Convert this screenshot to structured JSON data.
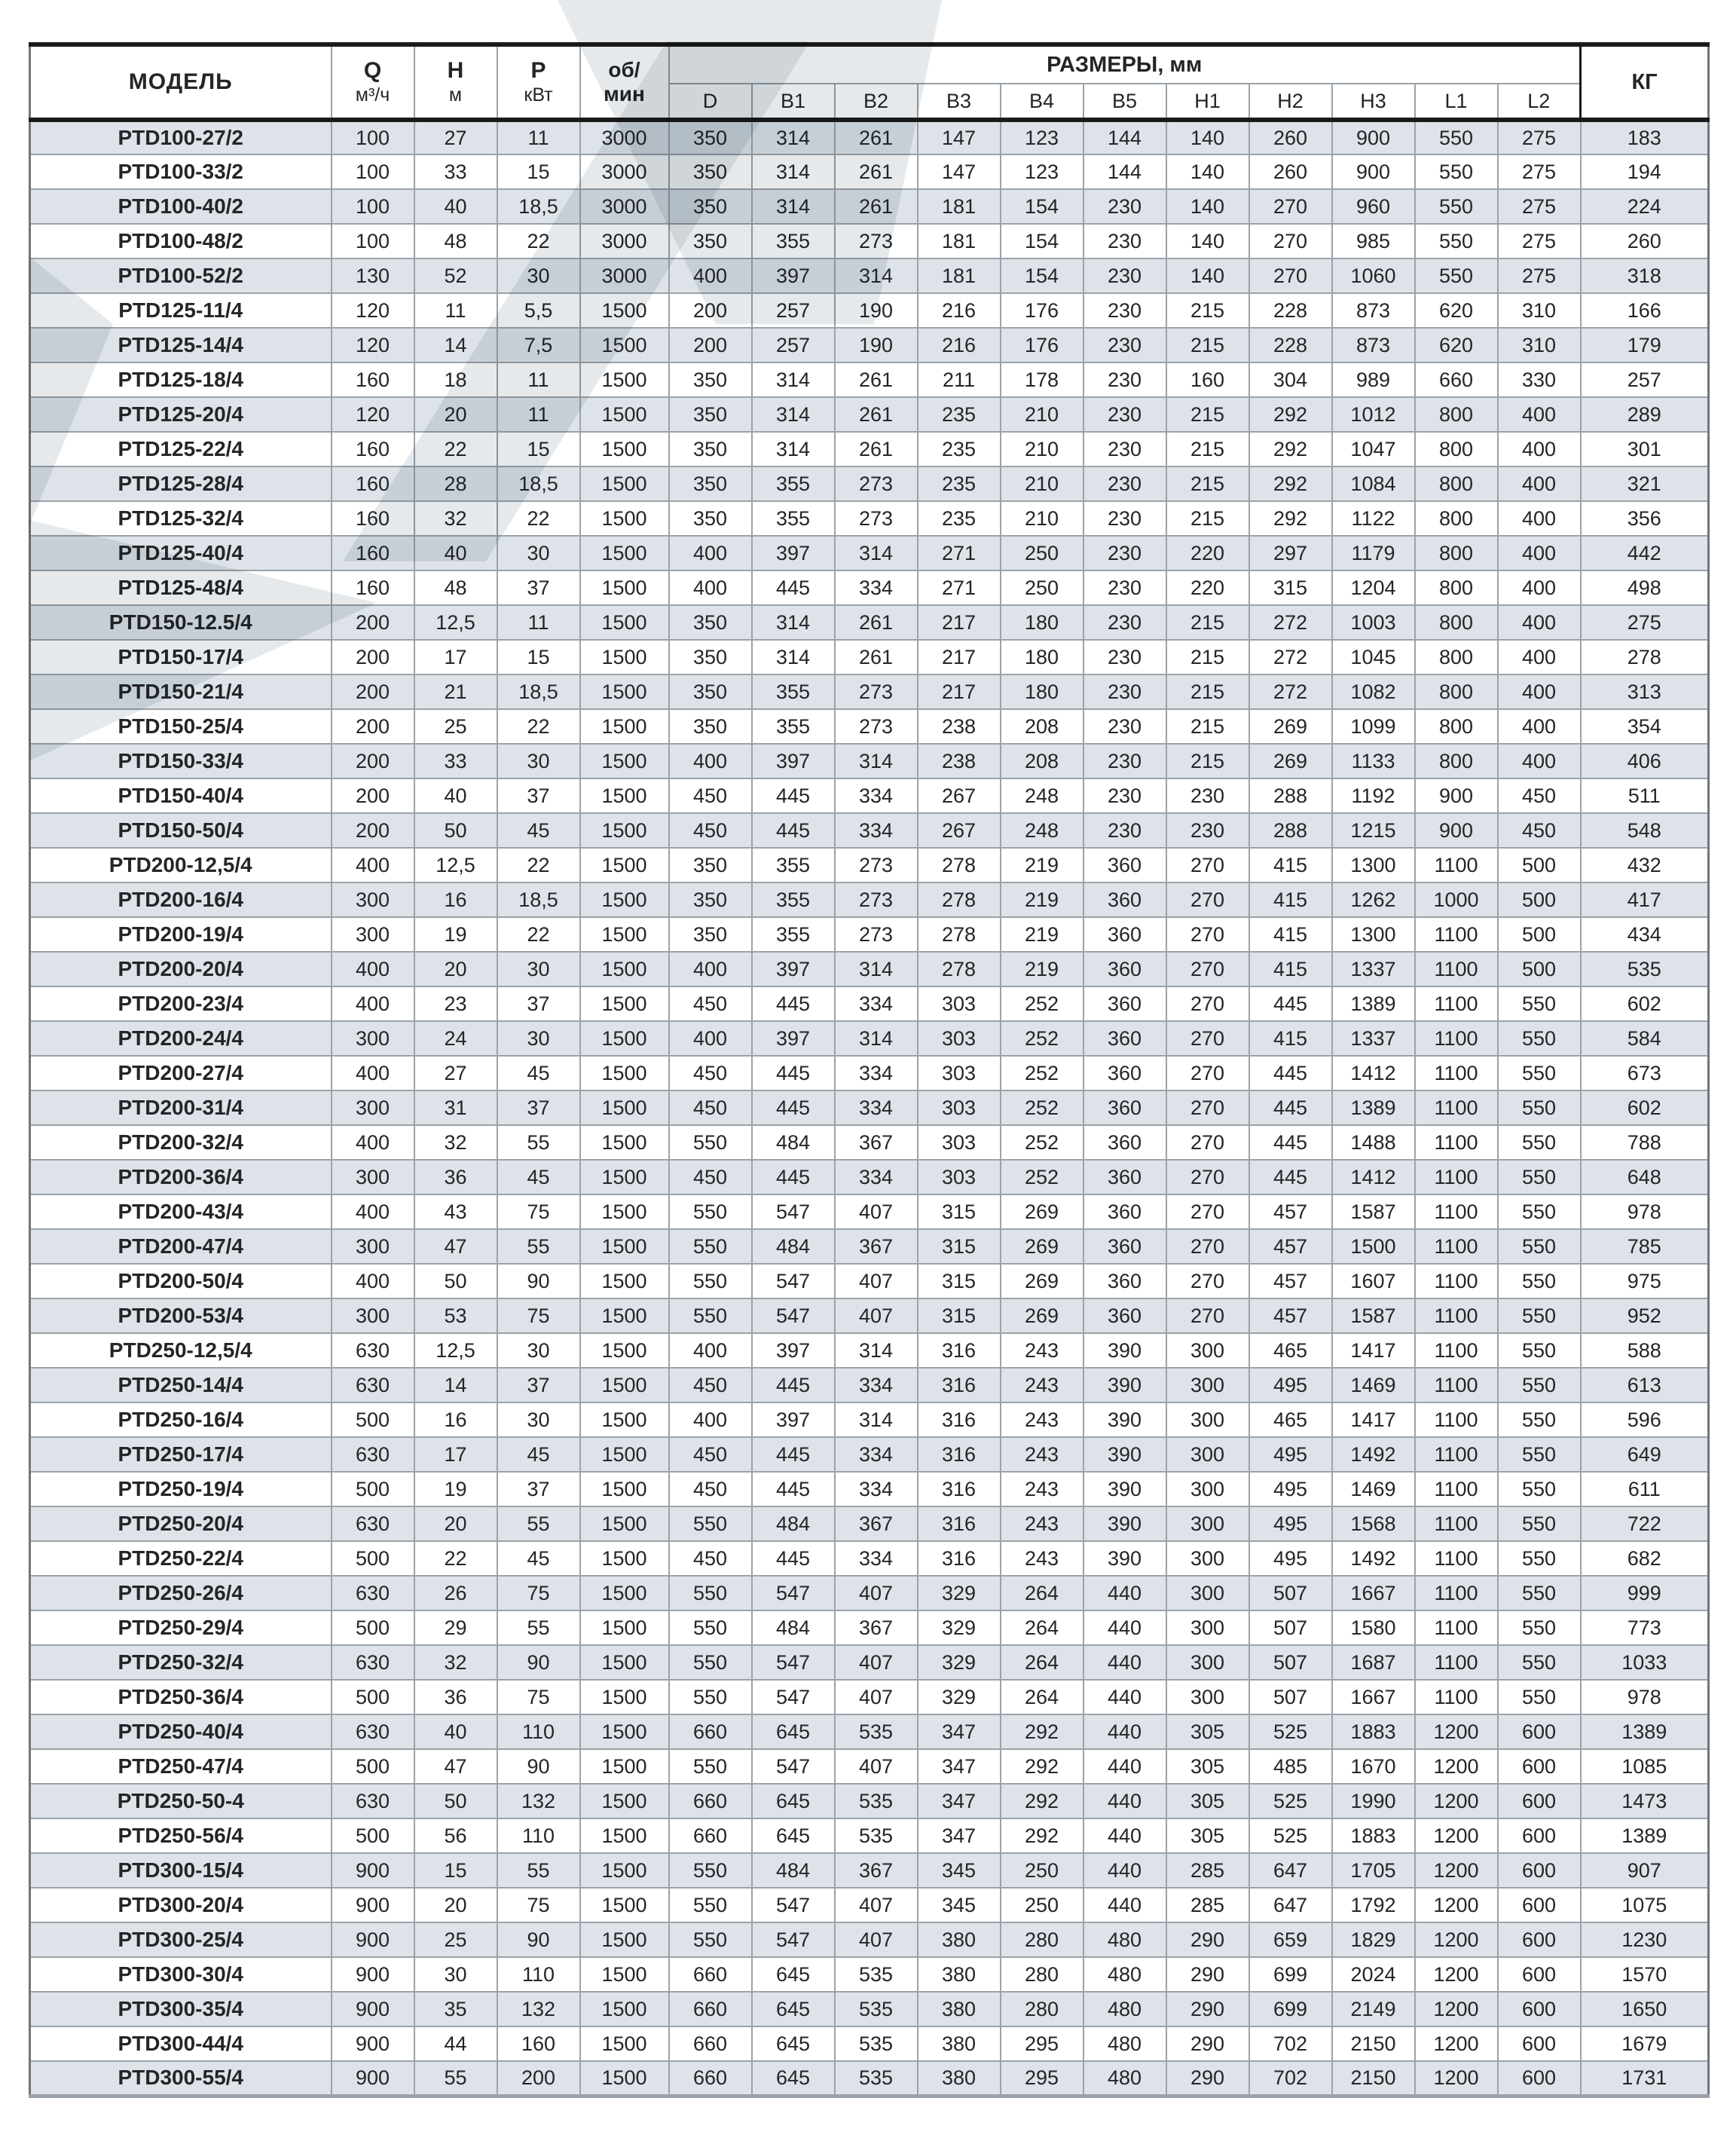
{
  "table": {
    "headers": {
      "model": "МОДЕЛЬ",
      "q": {
        "label": "Q",
        "unit": "м³/ч"
      },
      "h": {
        "label": "Н",
        "unit": "м"
      },
      "p": {
        "label": "Р",
        "unit": "кВт"
      },
      "rpm": {
        "line1": "об/",
        "line2": "мин"
      },
      "dims_group": "РАЗМЕРЫ, мм",
      "dims": [
        "D",
        "B1",
        "B2",
        "B3",
        "B4",
        "B5",
        "H1",
        "H2",
        "H3",
        "L1",
        "L2"
      ],
      "kg": "КГ"
    },
    "col_keys": [
      "model",
      "q",
      "h",
      "p",
      "rpm",
      "d",
      "b1",
      "b2",
      "b3",
      "b4",
      "b5",
      "h1",
      "h2",
      "h3",
      "l1",
      "l2",
      "kg"
    ],
    "rows": [
      [
        "PTD100-27/2",
        "100",
        "27",
        "11",
        "3000",
        "350",
        "314",
        "261",
        "147",
        "123",
        "144",
        "140",
        "260",
        "900",
        "550",
        "275",
        "183"
      ],
      [
        "PTD100-33/2",
        "100",
        "33",
        "15",
        "3000",
        "350",
        "314",
        "261",
        "147",
        "123",
        "144",
        "140",
        "260",
        "900",
        "550",
        "275",
        "194"
      ],
      [
        "PTD100-40/2",
        "100",
        "40",
        "18,5",
        "3000",
        "350",
        "314",
        "261",
        "181",
        "154",
        "230",
        "140",
        "270",
        "960",
        "550",
        "275",
        "224"
      ],
      [
        "PTD100-48/2",
        "100",
        "48",
        "22",
        "3000",
        "350",
        "355",
        "273",
        "181",
        "154",
        "230",
        "140",
        "270",
        "985",
        "550",
        "275",
        "260"
      ],
      [
        "PTD100-52/2",
        "130",
        "52",
        "30",
        "3000",
        "400",
        "397",
        "314",
        "181",
        "154",
        "230",
        "140",
        "270",
        "1060",
        "550",
        "275",
        "318"
      ],
      [
        "PTD125-11/4",
        "120",
        "11",
        "5,5",
        "1500",
        "200",
        "257",
        "190",
        "216",
        "176",
        "230",
        "215",
        "228",
        "873",
        "620",
        "310",
        "166"
      ],
      [
        "PTD125-14/4",
        "120",
        "14",
        "7,5",
        "1500",
        "200",
        "257",
        "190",
        "216",
        "176",
        "230",
        "215",
        "228",
        "873",
        "620",
        "310",
        "179"
      ],
      [
        "PTD125-18/4",
        "160",
        "18",
        "11",
        "1500",
        "350",
        "314",
        "261",
        "211",
        "178",
        "230",
        "160",
        "304",
        "989",
        "660",
        "330",
        "257"
      ],
      [
        "PTD125-20/4",
        "120",
        "20",
        "11",
        "1500",
        "350",
        "314",
        "261",
        "235",
        "210",
        "230",
        "215",
        "292",
        "1012",
        "800",
        "400",
        "289"
      ],
      [
        "PTD125-22/4",
        "160",
        "22",
        "15",
        "1500",
        "350",
        "314",
        "261",
        "235",
        "210",
        "230",
        "215",
        "292",
        "1047",
        "800",
        "400",
        "301"
      ],
      [
        "PTD125-28/4",
        "160",
        "28",
        "18,5",
        "1500",
        "350",
        "355",
        "273",
        "235",
        "210",
        "230",
        "215",
        "292",
        "1084",
        "800",
        "400",
        "321"
      ],
      [
        "PTD125-32/4",
        "160",
        "32",
        "22",
        "1500",
        "350",
        "355",
        "273",
        "235",
        "210",
        "230",
        "215",
        "292",
        "1122",
        "800",
        "400",
        "356"
      ],
      [
        "PTD125-40/4",
        "160",
        "40",
        "30",
        "1500",
        "400",
        "397",
        "314",
        "271",
        "250",
        "230",
        "220",
        "297",
        "1179",
        "800",
        "400",
        "442"
      ],
      [
        "PTD125-48/4",
        "160",
        "48",
        "37",
        "1500",
        "400",
        "445",
        "334",
        "271",
        "250",
        "230",
        "220",
        "315",
        "1204",
        "800",
        "400",
        "498"
      ],
      [
        "PTD150-12.5/4",
        "200",
        "12,5",
        "11",
        "1500",
        "350",
        "314",
        "261",
        "217",
        "180",
        "230",
        "215",
        "272",
        "1003",
        "800",
        "400",
        "275"
      ],
      [
        "PTD150-17/4",
        "200",
        "17",
        "15",
        "1500",
        "350",
        "314",
        "261",
        "217",
        "180",
        "230",
        "215",
        "272",
        "1045",
        "800",
        "400",
        "278"
      ],
      [
        "PTD150-21/4",
        "200",
        "21",
        "18,5",
        "1500",
        "350",
        "355",
        "273",
        "217",
        "180",
        "230",
        "215",
        "272",
        "1082",
        "800",
        "400",
        "313"
      ],
      [
        "PTD150-25/4",
        "200",
        "25",
        "22",
        "1500",
        "350",
        "355",
        "273",
        "238",
        "208",
        "230",
        "215",
        "269",
        "1099",
        "800",
        "400",
        "354"
      ],
      [
        "PTD150-33/4",
        "200",
        "33",
        "30",
        "1500",
        "400",
        "397",
        "314",
        "238",
        "208",
        "230",
        "215",
        "269",
        "1133",
        "800",
        "400",
        "406"
      ],
      [
        "PTD150-40/4",
        "200",
        "40",
        "37",
        "1500",
        "450",
        "445",
        "334",
        "267",
        "248",
        "230",
        "230",
        "288",
        "1192",
        "900",
        "450",
        "511"
      ],
      [
        "PTD150-50/4",
        "200",
        "50",
        "45",
        "1500",
        "450",
        "445",
        "334",
        "267",
        "248",
        "230",
        "230",
        "288",
        "1215",
        "900",
        "450",
        "548"
      ],
      [
        "PTD200-12,5/4",
        "400",
        "12,5",
        "22",
        "1500",
        "350",
        "355",
        "273",
        "278",
        "219",
        "360",
        "270",
        "415",
        "1300",
        "1100",
        "500",
        "432"
      ],
      [
        "PTD200-16/4",
        "300",
        "16",
        "18,5",
        "1500",
        "350",
        "355",
        "273",
        "278",
        "219",
        "360",
        "270",
        "415",
        "1262",
        "1000",
        "500",
        "417"
      ],
      [
        "PTD200-19/4",
        "300",
        "19",
        "22",
        "1500",
        "350",
        "355",
        "273",
        "278",
        "219",
        "360",
        "270",
        "415",
        "1300",
        "1100",
        "500",
        "434"
      ],
      [
        "PTD200-20/4",
        "400",
        "20",
        "30",
        "1500",
        "400",
        "397",
        "314",
        "278",
        "219",
        "360",
        "270",
        "415",
        "1337",
        "1100",
        "500",
        "535"
      ],
      [
        "PTD200-23/4",
        "400",
        "23",
        "37",
        "1500",
        "450",
        "445",
        "334",
        "303",
        "252",
        "360",
        "270",
        "445",
        "1389",
        "1100",
        "550",
        "602"
      ],
      [
        "PTD200-24/4",
        "300",
        "24",
        "30",
        "1500",
        "400",
        "397",
        "314",
        "303",
        "252",
        "360",
        "270",
        "415",
        "1337",
        "1100",
        "550",
        "584"
      ],
      [
        "PTD200-27/4",
        "400",
        "27",
        "45",
        "1500",
        "450",
        "445",
        "334",
        "303",
        "252",
        "360",
        "270",
        "445",
        "1412",
        "1100",
        "550",
        "673"
      ],
      [
        "PTD200-31/4",
        "300",
        "31",
        "37",
        "1500",
        "450",
        "445",
        "334",
        "303",
        "252",
        "360",
        "270",
        "445",
        "1389",
        "1100",
        "550",
        "602"
      ],
      [
        "PTD200-32/4",
        "400",
        "32",
        "55",
        "1500",
        "550",
        "484",
        "367",
        "303",
        "252",
        "360",
        "270",
        "445",
        "1488",
        "1100",
        "550",
        "788"
      ],
      [
        "PTD200-36/4",
        "300",
        "36",
        "45",
        "1500",
        "450",
        "445",
        "334",
        "303",
        "252",
        "360",
        "270",
        "445",
        "1412",
        "1100",
        "550",
        "648"
      ],
      [
        "PTD200-43/4",
        "400",
        "43",
        "75",
        "1500",
        "550",
        "547",
        "407",
        "315",
        "269",
        "360",
        "270",
        "457",
        "1587",
        "1100",
        "550",
        "978"
      ],
      [
        "PTD200-47/4",
        "300",
        "47",
        "55",
        "1500",
        "550",
        "484",
        "367",
        "315",
        "269",
        "360",
        "270",
        "457",
        "1500",
        "1100",
        "550",
        "785"
      ],
      [
        "PTD200-50/4",
        "400",
        "50",
        "90",
        "1500",
        "550",
        "547",
        "407",
        "315",
        "269",
        "360",
        "270",
        "457",
        "1607",
        "1100",
        "550",
        "975"
      ],
      [
        "PTD200-53/4",
        "300",
        "53",
        "75",
        "1500",
        "550",
        "547",
        "407",
        "315",
        "269",
        "360",
        "270",
        "457",
        "1587",
        "1100",
        "550",
        "952"
      ],
      [
        "PTD250-12,5/4",
        "630",
        "12,5",
        "30",
        "1500",
        "400",
        "397",
        "314",
        "316",
        "243",
        "390",
        "300",
        "465",
        "1417",
        "1100",
        "550",
        "588"
      ],
      [
        "PTD250-14/4",
        "630",
        "14",
        "37",
        "1500",
        "450",
        "445",
        "334",
        "316",
        "243",
        "390",
        "300",
        "495",
        "1469",
        "1100",
        "550",
        "613"
      ],
      [
        "PTD250-16/4",
        "500",
        "16",
        "30",
        "1500",
        "400",
        "397",
        "314",
        "316",
        "243",
        "390",
        "300",
        "465",
        "1417",
        "1100",
        "550",
        "596"
      ],
      [
        "PTD250-17/4",
        "630",
        "17",
        "45",
        "1500",
        "450",
        "445",
        "334",
        "316",
        "243",
        "390",
        "300",
        "495",
        "1492",
        "1100",
        "550",
        "649"
      ],
      [
        "PTD250-19/4",
        "500",
        "19",
        "37",
        "1500",
        "450",
        "445",
        "334",
        "316",
        "243",
        "390",
        "300",
        "495",
        "1469",
        "1100",
        "550",
        "611"
      ],
      [
        "PTD250-20/4",
        "630",
        "20",
        "55",
        "1500",
        "550",
        "484",
        "367",
        "316",
        "243",
        "390",
        "300",
        "495",
        "1568",
        "1100",
        "550",
        "722"
      ],
      [
        "PTD250-22/4",
        "500",
        "22",
        "45",
        "1500",
        "450",
        "445",
        "334",
        "316",
        "243",
        "390",
        "300",
        "495",
        "1492",
        "1100",
        "550",
        "682"
      ],
      [
        "PTD250-26/4",
        "630",
        "26",
        "75",
        "1500",
        "550",
        "547",
        "407",
        "329",
        "264",
        "440",
        "300",
        "507",
        "1667",
        "1100",
        "550",
        "999"
      ],
      [
        "PTD250-29/4",
        "500",
        "29",
        "55",
        "1500",
        "550",
        "484",
        "367",
        "329",
        "264",
        "440",
        "300",
        "507",
        "1580",
        "1100",
        "550",
        "773"
      ],
      [
        "PTD250-32/4",
        "630",
        "32",
        "90",
        "1500",
        "550",
        "547",
        "407",
        "329",
        "264",
        "440",
        "300",
        "507",
        "1687",
        "1100",
        "550",
        "1033"
      ],
      [
        "PTD250-36/4",
        "500",
        "36",
        "75",
        "1500",
        "550",
        "547",
        "407",
        "329",
        "264",
        "440",
        "300",
        "507",
        "1667",
        "1100",
        "550",
        "978"
      ],
      [
        "PTD250-40/4",
        "630",
        "40",
        "110",
        "1500",
        "660",
        "645",
        "535",
        "347",
        "292",
        "440",
        "305",
        "525",
        "1883",
        "1200",
        "600",
        "1389"
      ],
      [
        "PTD250-47/4",
        "500",
        "47",
        "90",
        "1500",
        "550",
        "547",
        "407",
        "347",
        "292",
        "440",
        "305",
        "485",
        "1670",
        "1200",
        "600",
        "1085"
      ],
      [
        "PTD250-50-4",
        "630",
        "50",
        "132",
        "1500",
        "660",
        "645",
        "535",
        "347",
        "292",
        "440",
        "305",
        "525",
        "1990",
        "1200",
        "600",
        "1473"
      ],
      [
        "PTD250-56/4",
        "500",
        "56",
        "110",
        "1500",
        "660",
        "645",
        "535",
        "347",
        "292",
        "440",
        "305",
        "525",
        "1883",
        "1200",
        "600",
        "1389"
      ],
      [
        "PTD300-15/4",
        "900",
        "15",
        "55",
        "1500",
        "550",
        "484",
        "367",
        "345",
        "250",
        "440",
        "285",
        "647",
        "1705",
        "1200",
        "600",
        "907"
      ],
      [
        "PTD300-20/4",
        "900",
        "20",
        "75",
        "1500",
        "550",
        "547",
        "407",
        "345",
        "250",
        "440",
        "285",
        "647",
        "1792",
        "1200",
        "600",
        "1075"
      ],
      [
        "PTD300-25/4",
        "900",
        "25",
        "90",
        "1500",
        "550",
        "547",
        "407",
        "380",
        "280",
        "480",
        "290",
        "659",
        "1829",
        "1200",
        "600",
        "1230"
      ],
      [
        "PTD300-30/4",
        "900",
        "30",
        "110",
        "1500",
        "660",
        "645",
        "535",
        "380",
        "280",
        "480",
        "290",
        "699",
        "2024",
        "1200",
        "600",
        "1570"
      ],
      [
        "PTD300-35/4",
        "900",
        "35",
        "132",
        "1500",
        "660",
        "645",
        "535",
        "380",
        "280",
        "480",
        "290",
        "699",
        "2149",
        "1200",
        "600",
        "1650"
      ],
      [
        "PTD300-44/4",
        "900",
        "44",
        "160",
        "1500",
        "660",
        "645",
        "535",
        "380",
        "295",
        "480",
        "290",
        "702",
        "2150",
        "1200",
        "600",
        "1679"
      ],
      [
        "PTD300-55/4",
        "900",
        "55",
        "200",
        "1500",
        "660",
        "645",
        "535",
        "380",
        "295",
        "480",
        "290",
        "702",
        "2150",
        "1200",
        "600",
        "1731"
      ]
    ]
  },
  "colors": {
    "row_shade": "#dde3e9",
    "border_inner": "#9ba2a9",
    "border_heavy": "#1a1a1a",
    "watermark": "#b3bac1"
  }
}
